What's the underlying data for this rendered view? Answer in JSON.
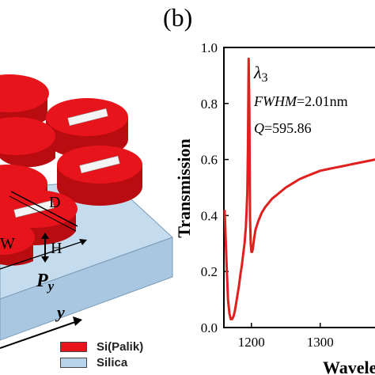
{
  "panel_label": "(b)",
  "schematic": {
    "labels": {
      "D": "D",
      "H": "H",
      "W": "W",
      "Py": "P",
      "Py_sub": "y",
      "y_axis": "y"
    }
  },
  "legend": [
    {
      "label": "Si(Palik)",
      "color": "#e8141b"
    },
    {
      "label": "Silica",
      "color": "#b8d4ea"
    }
  ],
  "chart_data": {
    "type": "line",
    "ylabel": "Transmission",
    "xlabel": "Wavele",
    "xlim": [
      1160,
      1390
    ],
    "ylim": [
      0.0,
      1.0
    ],
    "x_ticks": [
      1200,
      1300
    ],
    "y_ticks": [
      0.0,
      0.2,
      0.4,
      0.6,
      0.8,
      1.0
    ],
    "y_tick_labels": [
      "0.0",
      "0.2",
      "0.4",
      "0.6",
      "0.8",
      "1.0"
    ],
    "x_tick_labels": [
      "1200",
      "1300"
    ],
    "color": "#e0201f",
    "annotations": {
      "lambda": "λ",
      "lambda_sub": "3",
      "fwhm_key": "FWHM",
      "fwhm_val": "=2.01nm",
      "q_key": "Q",
      "q_val": "=595.86"
    },
    "series": [
      {
        "x": [
          1161,
          1164,
          1166,
          1168,
          1170,
          1172,
          1174,
          1176,
          1178,
          1180,
          1182,
          1184,
          1186,
          1188,
          1190,
          1192,
          1194,
          1195,
          1196,
          1197,
          1198,
          1199,
          1200,
          1201,
          1202,
          1203,
          1204,
          1206,
          1210,
          1215,
          1220,
          1230,
          1240,
          1250,
          1260,
          1270,
          1280,
          1290,
          1300,
          1310,
          1320,
          1330,
          1340,
          1350,
          1360,
          1370,
          1380,
          1390
        ],
        "y": [
          0.42,
          0.22,
          0.1,
          0.05,
          0.03,
          0.03,
          0.04,
          0.06,
          0.09,
          0.12,
          0.15,
          0.19,
          0.22,
          0.26,
          0.3,
          0.36,
          0.48,
          0.65,
          0.96,
          0.78,
          0.4,
          0.3,
          0.27,
          0.27,
          0.28,
          0.3,
          0.32,
          0.35,
          0.38,
          0.41,
          0.43,
          0.46,
          0.48,
          0.5,
          0.515,
          0.53,
          0.54,
          0.55,
          0.56,
          0.565,
          0.57,
          0.575,
          0.58,
          0.585,
          0.59,
          0.595,
          0.6,
          0.605
        ]
      }
    ]
  }
}
